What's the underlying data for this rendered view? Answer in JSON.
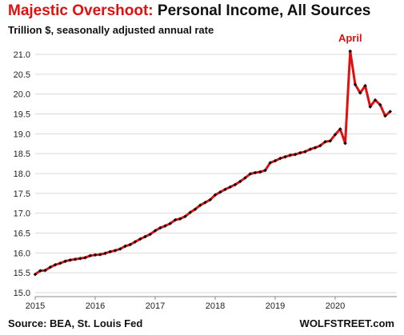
{
  "title_red": "Majestic Overshoot:",
  "title_black": "Personal Income, All Sources",
  "subtitle": "Trillion $, seasonally adjusted annual rate",
  "source": "Source: BEA, St. Louis Fed",
  "brand": "WOLFSTREET.com",
  "colors": {
    "line": "#e01010",
    "marker": "#111111",
    "grid": "#d9d9d9",
    "title_accent": "#e01010"
  },
  "chart_data": {
    "type": "line",
    "title": "Majestic Overshoot: Personal Income, All Sources",
    "subtitle": "Trillion $, seasonally adjusted annual rate",
    "xlabel": "",
    "ylabel": "",
    "ylim": [
      15.0,
      21.0
    ],
    "yticks": [
      "15.0",
      "15.5",
      "16.0",
      "16.5",
      "17.0",
      "17.5",
      "18.0",
      "18.5",
      "19.0",
      "19.5",
      "20.0",
      "20.5",
      "21.0"
    ],
    "xticks": [
      "2015",
      "2016",
      "2017",
      "2018",
      "2019",
      "2020"
    ],
    "grid": "horizontal",
    "annotations": [
      {
        "text": "April",
        "at": "2020-04"
      }
    ],
    "series": [
      {
        "x": [
          "2015-01",
          "2015-02",
          "2015-03",
          "2015-04",
          "2015-05",
          "2015-06",
          "2015-07",
          "2015-08",
          "2015-09",
          "2015-10",
          "2015-11",
          "2015-12",
          "2016-01",
          "2016-02",
          "2016-03",
          "2016-04",
          "2016-05",
          "2016-06",
          "2016-07",
          "2016-08",
          "2016-09",
          "2016-10",
          "2016-11",
          "2016-12",
          "2017-01",
          "2017-02",
          "2017-03",
          "2017-04",
          "2017-05",
          "2017-06",
          "2017-07",
          "2017-08",
          "2017-09",
          "2017-10",
          "2017-11",
          "2017-12",
          "2018-01",
          "2018-02",
          "2018-03",
          "2018-04",
          "2018-05",
          "2018-06",
          "2018-07",
          "2018-08",
          "2018-09",
          "2018-10",
          "2018-11",
          "2018-12",
          "2019-01",
          "2019-02",
          "2019-03",
          "2019-04",
          "2019-05",
          "2019-06",
          "2019-07",
          "2019-08",
          "2019-09",
          "2019-10",
          "2019-11",
          "2019-12",
          "2020-01",
          "2020-02",
          "2020-03",
          "2020-04",
          "2020-05",
          "2020-06",
          "2020-07",
          "2020-08",
          "2020-09",
          "2020-10",
          "2020-11",
          "2020-12"
        ],
        "values": [
          15.46,
          15.55,
          15.56,
          15.64,
          15.7,
          15.74,
          15.79,
          15.82,
          15.84,
          15.86,
          15.88,
          15.93,
          15.95,
          15.96,
          15.99,
          16.03,
          16.06,
          16.1,
          16.17,
          16.21,
          16.28,
          16.35,
          16.41,
          16.47,
          16.56,
          16.63,
          16.68,
          16.74,
          16.83,
          16.86,
          16.92,
          17.02,
          17.1,
          17.2,
          17.27,
          17.34,
          17.46,
          17.53,
          17.6,
          17.66,
          17.72,
          17.8,
          17.89,
          17.99,
          18.02,
          18.04,
          18.08,
          18.27,
          18.32,
          18.38,
          18.42,
          18.46,
          18.48,
          18.52,
          18.55,
          18.61,
          18.65,
          18.7,
          18.8,
          18.82,
          18.98,
          19.12,
          18.76,
          21.08,
          20.24,
          20.03,
          20.21,
          19.68,
          19.85,
          19.73,
          19.45,
          19.56
        ]
      }
    ]
  }
}
